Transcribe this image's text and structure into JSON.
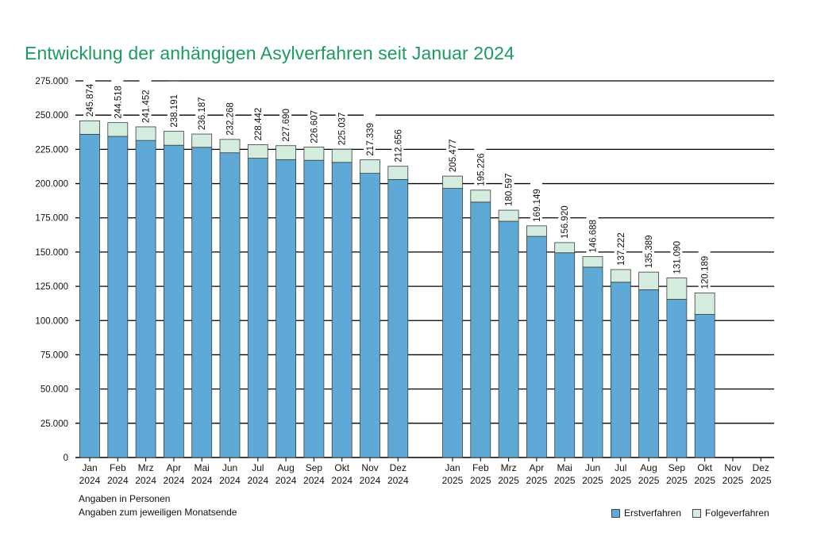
{
  "chart_data": {
    "type": "bar",
    "stacked": true,
    "title": "Entwicklung der anhängigen Asylverfahren seit Januar 2024",
    "notes": [
      "Angaben in Personen",
      "Angaben zum jeweiligen Monatsende"
    ],
    "y_ticks": [
      "0",
      "25.000",
      "50.000",
      "75.000",
      "100.000",
      "125.000",
      "150.000",
      "175.000",
      "200.000",
      "225.000",
      "250.000",
      "275.000"
    ],
    "ylim": [
      0,
      275000
    ],
    "groups": [
      {
        "year": "2024",
        "months": [
          "Jan",
          "Feb",
          "Mrz",
          "Apr",
          "Mai",
          "Jun",
          "Jul",
          "Aug",
          "Sep",
          "Okt",
          "Nov",
          "Dez"
        ],
        "totals": [
          245874,
          244518,
          241452,
          238191,
          236187,
          232268,
          228442,
          227690,
          226607,
          225037,
          217339,
          212656
        ],
        "total_labels": [
          "245.874",
          "244.518",
          "241.452",
          "238.191",
          "236.187",
          "232.268",
          "228.442",
          "227.690",
          "226.607",
          "225.037",
          "217.339",
          "212.656"
        ],
        "erstverfahren": [
          236000,
          234500,
          231500,
          228000,
          226500,
          222500,
          218500,
          217500,
          217000,
          215500,
          207500,
          203000
        ]
      },
      {
        "year": "2025",
        "months": [
          "Jan",
          "Feb",
          "Mrz",
          "Apr",
          "Mai",
          "Jun",
          "Jul",
          "Aug",
          "Sep",
          "Okt",
          "Nov",
          "Dez"
        ],
        "totals": [
          205477,
          195226,
          180597,
          169149,
          156920,
          146688,
          137222,
          135389,
          131090,
          120189,
          null,
          null
        ],
        "total_labels": [
          "205.477",
          "195.226",
          "180.597",
          "169.149",
          "156.920",
          "146.688",
          "137.222",
          "135.389",
          "131.090",
          "120.189",
          "",
          ""
        ],
        "erstverfahren": [
          196500,
          186500,
          172500,
          161500,
          149500,
          139000,
          128000,
          122500,
          115500,
          104500,
          null,
          null
        ]
      }
    ],
    "series": [
      {
        "name": "Erstverfahren",
        "color": "#5ea9d6"
      },
      {
        "name": "Folgeverfahren",
        "color": "#d3ecde"
      }
    ]
  }
}
